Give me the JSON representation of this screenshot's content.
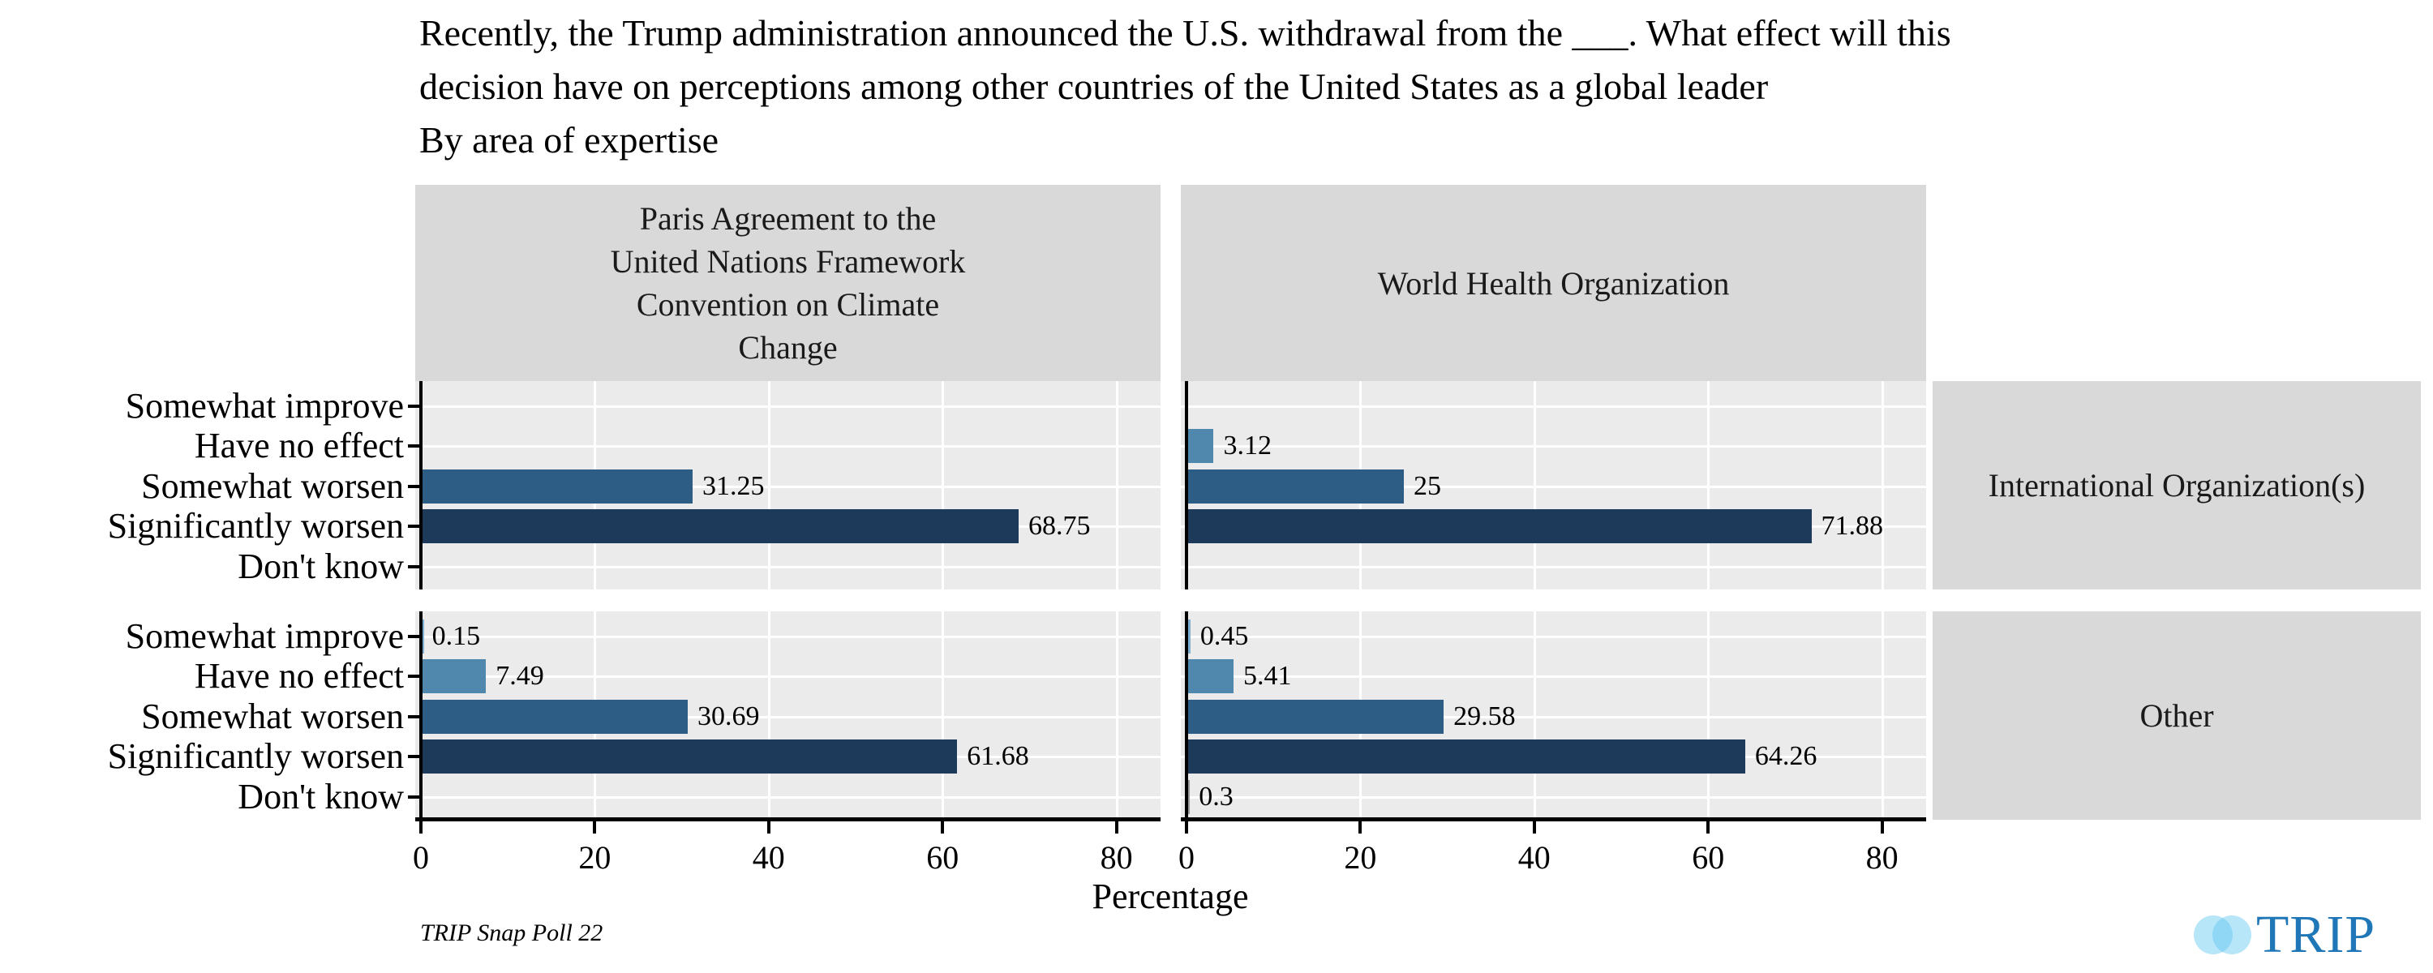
{
  "title": {
    "line1": "Recently, the Trump administration announced the U.S. withdrawal from the ___. What effect will this",
    "line2": "decision have on perceptions among other countries of the United States as a global leader",
    "line3": "By area of expertise"
  },
  "chart_data": {
    "type": "bar",
    "orientation": "horizontal",
    "title": "Recently, the Trump administration announced the U.S. withdrawal from the ___. What effect will this decision have on perceptions among other countries of the United States as a global leader",
    "subtitle": "By area of expertise",
    "xlabel": "Percentage",
    "x_ticks": [
      0,
      20,
      40,
      60,
      80
    ],
    "xlim": [
      0,
      85
    ],
    "grid": "white major vertical gridlines and white horizontal category gridlines on light-gray panels",
    "legend": "none",
    "categories": [
      "Somewhat improve",
      "Have no effect",
      "Somewhat worsen",
      "Significantly worsen",
      "Don't know"
    ],
    "category_colors": [
      "#7fb0d1",
      "#4f87ad",
      "#2d5d85",
      "#1d3a5a",
      "#989898"
    ],
    "column_facets": [
      "Paris Agreement to the\nUnited Nations Framework\nConvention on Climate\nChange",
      "World Health Organization"
    ],
    "row_facets": [
      "International Organization(s)",
      "Other"
    ],
    "panels": [
      {
        "column_facet": 0,
        "row_facet": 0,
        "values": [
          null,
          null,
          31.25,
          68.75,
          null
        ]
      },
      {
        "column_facet": 1,
        "row_facet": 0,
        "values": [
          null,
          3.12,
          25,
          71.88,
          null
        ]
      },
      {
        "column_facet": 0,
        "row_facet": 1,
        "values": [
          0.15,
          7.49,
          30.69,
          61.68,
          null
        ]
      },
      {
        "column_facet": 1,
        "row_facet": 1,
        "values": [
          0.45,
          5.41,
          29.58,
          64.26,
          0.3
        ]
      }
    ]
  },
  "footer": {
    "caption": "TRIP Snap Poll 22",
    "logo_text": "TRIP"
  },
  "colors": {
    "panel_bg": "#ebebeb",
    "strip_bg": "#d9d9d9",
    "gridline": "#ffffff",
    "axis": "#000000",
    "logo_blue": "#2077b7",
    "logo_circle": "#55c3f0"
  }
}
